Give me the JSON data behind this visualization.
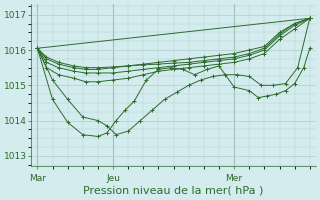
{
  "bg_color": "#d4ecee",
  "grid_color": "#b0cdd0",
  "line_color": "#2d6a2d",
  "xlabel": "Pression niveau de la mer( hPa )",
  "xlabel_fontsize": 8,
  "yticks": [
    1013,
    1014,
    1015,
    1016,
    1017
  ],
  "ylim": [
    1012.7,
    1017.3
  ],
  "xlim": [
    -0.2,
    9.2
  ],
  "vlines": [
    0,
    2.5,
    6.5
  ],
  "xtick_labels_pos": [
    0.0,
    2.5,
    6.5
  ],
  "xtick_labels": [
    "Mar",
    "Jeu",
    "Mer"
  ],
  "series": [
    {
      "x": [
        0,
        0.3,
        0.7,
        1.2,
        1.6,
        2.0,
        2.5,
        3.0,
        3.5,
        4.0,
        4.5,
        5.0,
        5.5,
        6.0,
        6.5,
        7.0,
        7.5,
        8.0,
        8.5,
        9.0
      ],
      "y": [
        1016.05,
        1015.75,
        1015.6,
        1015.5,
        1015.45,
        1015.45,
        1015.5,
        1015.55,
        1015.6,
        1015.65,
        1015.7,
        1015.75,
        1015.8,
        1015.85,
        1015.9,
        1016.0,
        1016.1,
        1016.5,
        1016.75,
        1016.9
      ]
    },
    {
      "x": [
        0,
        0.3,
        0.7,
        1.2,
        1.6,
        2.0,
        2.5,
        3.0,
        3.5,
        4.0,
        4.5,
        5.0,
        5.5,
        6.0,
        6.5,
        7.0,
        7.5,
        8.0,
        8.5,
        9.0
      ],
      "y": [
        1016.05,
        1015.65,
        1015.5,
        1015.4,
        1015.35,
        1015.35,
        1015.35,
        1015.4,
        1015.45,
        1015.5,
        1015.55,
        1015.6,
        1015.65,
        1015.7,
        1015.75,
        1015.85,
        1016.0,
        1016.4,
        1016.7,
        1016.9
      ]
    },
    {
      "x": [
        0,
        0.3,
        0.7,
        1.2,
        1.6,
        2.0,
        2.5,
        3.0,
        3.5,
        4.0,
        4.5,
        5.0,
        5.5,
        6.0,
        6.5,
        7.0,
        7.5,
        8.0,
        8.5,
        9.0
      ],
      "y": [
        1016.05,
        1015.5,
        1015.3,
        1015.2,
        1015.1,
        1015.1,
        1015.15,
        1015.2,
        1015.3,
        1015.4,
        1015.45,
        1015.5,
        1015.55,
        1015.6,
        1015.65,
        1015.75,
        1015.9,
        1016.3,
        1016.6,
        1016.9
      ]
    },
    {
      "x": [
        0,
        0.5,
        1.0,
        1.5,
        2.0,
        2.3,
        2.6,
        3.0,
        3.4,
        3.8,
        4.2,
        4.6,
        5.0,
        5.4,
        5.8,
        6.2,
        6.6,
        7.0,
        7.4,
        7.8,
        8.2,
        8.6,
        9.0
      ],
      "y": [
        1016.05,
        1015.15,
        1014.6,
        1014.1,
        1014.0,
        1013.85,
        1013.6,
        1013.7,
        1014.0,
        1014.3,
        1014.6,
        1014.8,
        1015.0,
        1015.15,
        1015.25,
        1015.3,
        1015.3,
        1015.25,
        1015.0,
        1015.0,
        1015.05,
        1015.5,
        1016.9
      ]
    },
    {
      "x": [
        0,
        0.5,
        1.0,
        1.5,
        2.0,
        2.3,
        2.6,
        2.9,
        3.2,
        3.6,
        4.0,
        4.4,
        4.8,
        5.2,
        5.6,
        6.0,
        6.5,
        7.0,
        7.3,
        7.6,
        7.9,
        8.2,
        8.5,
        8.8,
        9.0
      ],
      "y": [
        1016.05,
        1014.6,
        1013.95,
        1013.6,
        1013.55,
        1013.65,
        1014.0,
        1014.3,
        1014.55,
        1015.15,
        1015.45,
        1015.5,
        1015.45,
        1015.3,
        1015.45,
        1015.55,
        1014.95,
        1014.85,
        1014.65,
        1014.7,
        1014.75,
        1014.85,
        1015.05,
        1015.5,
        1016.05
      ]
    },
    {
      "x": [
        0,
        0.3,
        0.7,
        1.2,
        1.6,
        2.0,
        2.5,
        3.0,
        3.5,
        4.0,
        4.5,
        5.0,
        5.5,
        6.0,
        6.5,
        7.0,
        7.5,
        8.0,
        8.5,
        9.0
      ],
      "y": [
        1016.05,
        1015.8,
        1015.65,
        1015.55,
        1015.5,
        1015.5,
        1015.52,
        1015.55,
        1015.58,
        1015.6,
        1015.63,
        1015.65,
        1015.7,
        1015.75,
        1015.8,
        1015.9,
        1016.05,
        1016.45,
        1016.75,
        1016.9
      ]
    }
  ],
  "extra_line": {
    "x": [
      0,
      9.0
    ],
    "y": [
      1016.05,
      1016.9
    ]
  }
}
